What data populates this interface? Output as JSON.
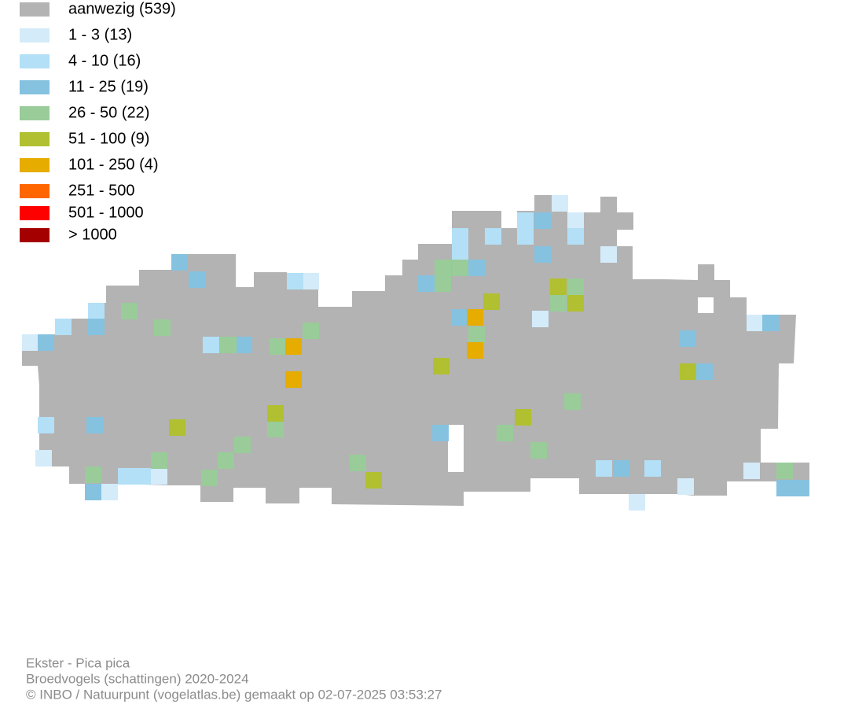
{
  "legend": {
    "items": [
      {
        "label": "aanwezig (539)",
        "color": "#b3b3b3"
      },
      {
        "label": "1 - 3 (13)",
        "color": "#d4ebf9"
      },
      {
        "label": "4 - 10 (16)",
        "color": "#b3e0f7"
      },
      {
        "label": "11 - 25 (19)",
        "color": "#85c2e0"
      },
      {
        "label": "26 - 50 (22)",
        "color": "#99cc99"
      },
      {
        "label": "51 - 100 (9)",
        "color": "#b0c030"
      },
      {
        "label": "101 - 250 (4)",
        "color": "#e6ac00"
      },
      {
        "label": "251 - 500",
        "color": "#ff6600"
      },
      {
        "label": "501 - 1000",
        "color": "#ff0000"
      },
      {
        "label": "> 1000",
        "color": "#a50000"
      }
    ]
  },
  "footer": {
    "lines": [
      "Ekster - Pica pica",
      "Broedvogels (schattingen) 2020-2024",
      "© INBO / Natuurpunt (vogelatlas.be) gemaakt op 02-07-2025 03:53:27"
    ]
  }
}
